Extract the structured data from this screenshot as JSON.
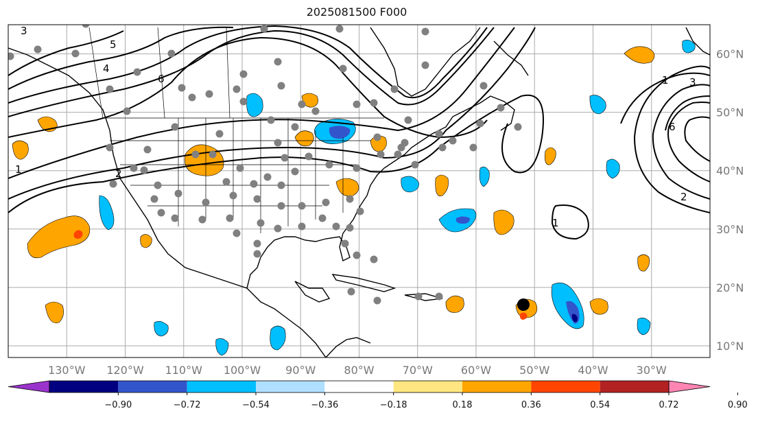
{
  "title": "2025081500 F000",
  "map": {
    "lon_range": [
      -140,
      -20
    ],
    "lat_range": [
      8,
      65
    ],
    "lon_labels": [
      "130°W",
      "120°W",
      "110°W",
      "100°W",
      "90°W",
      "80°W",
      "70°W",
      "60°W",
      "50°W",
      "40°W",
      "30°W"
    ],
    "lat_labels": [
      "10°N",
      "20°N",
      "30°N",
      "40°N",
      "50°N",
      "60°N"
    ],
    "contour_labels": [
      "3",
      "5",
      "4",
      "6",
      "1",
      "2",
      "1",
      "3",
      "6",
      "1",
      "2"
    ],
    "colors": {
      "station_dot": "#808080",
      "highlight_dot": "#000000"
    }
  },
  "colorbar": {
    "ticks": [
      "−0.90",
      "−0.72",
      "−0.54",
      "−0.36",
      "−0.18",
      "0.18",
      "0.36",
      "0.54",
      "0.72",
      "0.90"
    ],
    "colors": [
      "#9933cc",
      "#000080",
      "#3355cc",
      "#00bfff",
      "#b0e0ff",
      "#ffffff",
      "#ffe680",
      "#ffa500",
      "#ff4500",
      "#b22222",
      "#ff85b3"
    ]
  }
}
